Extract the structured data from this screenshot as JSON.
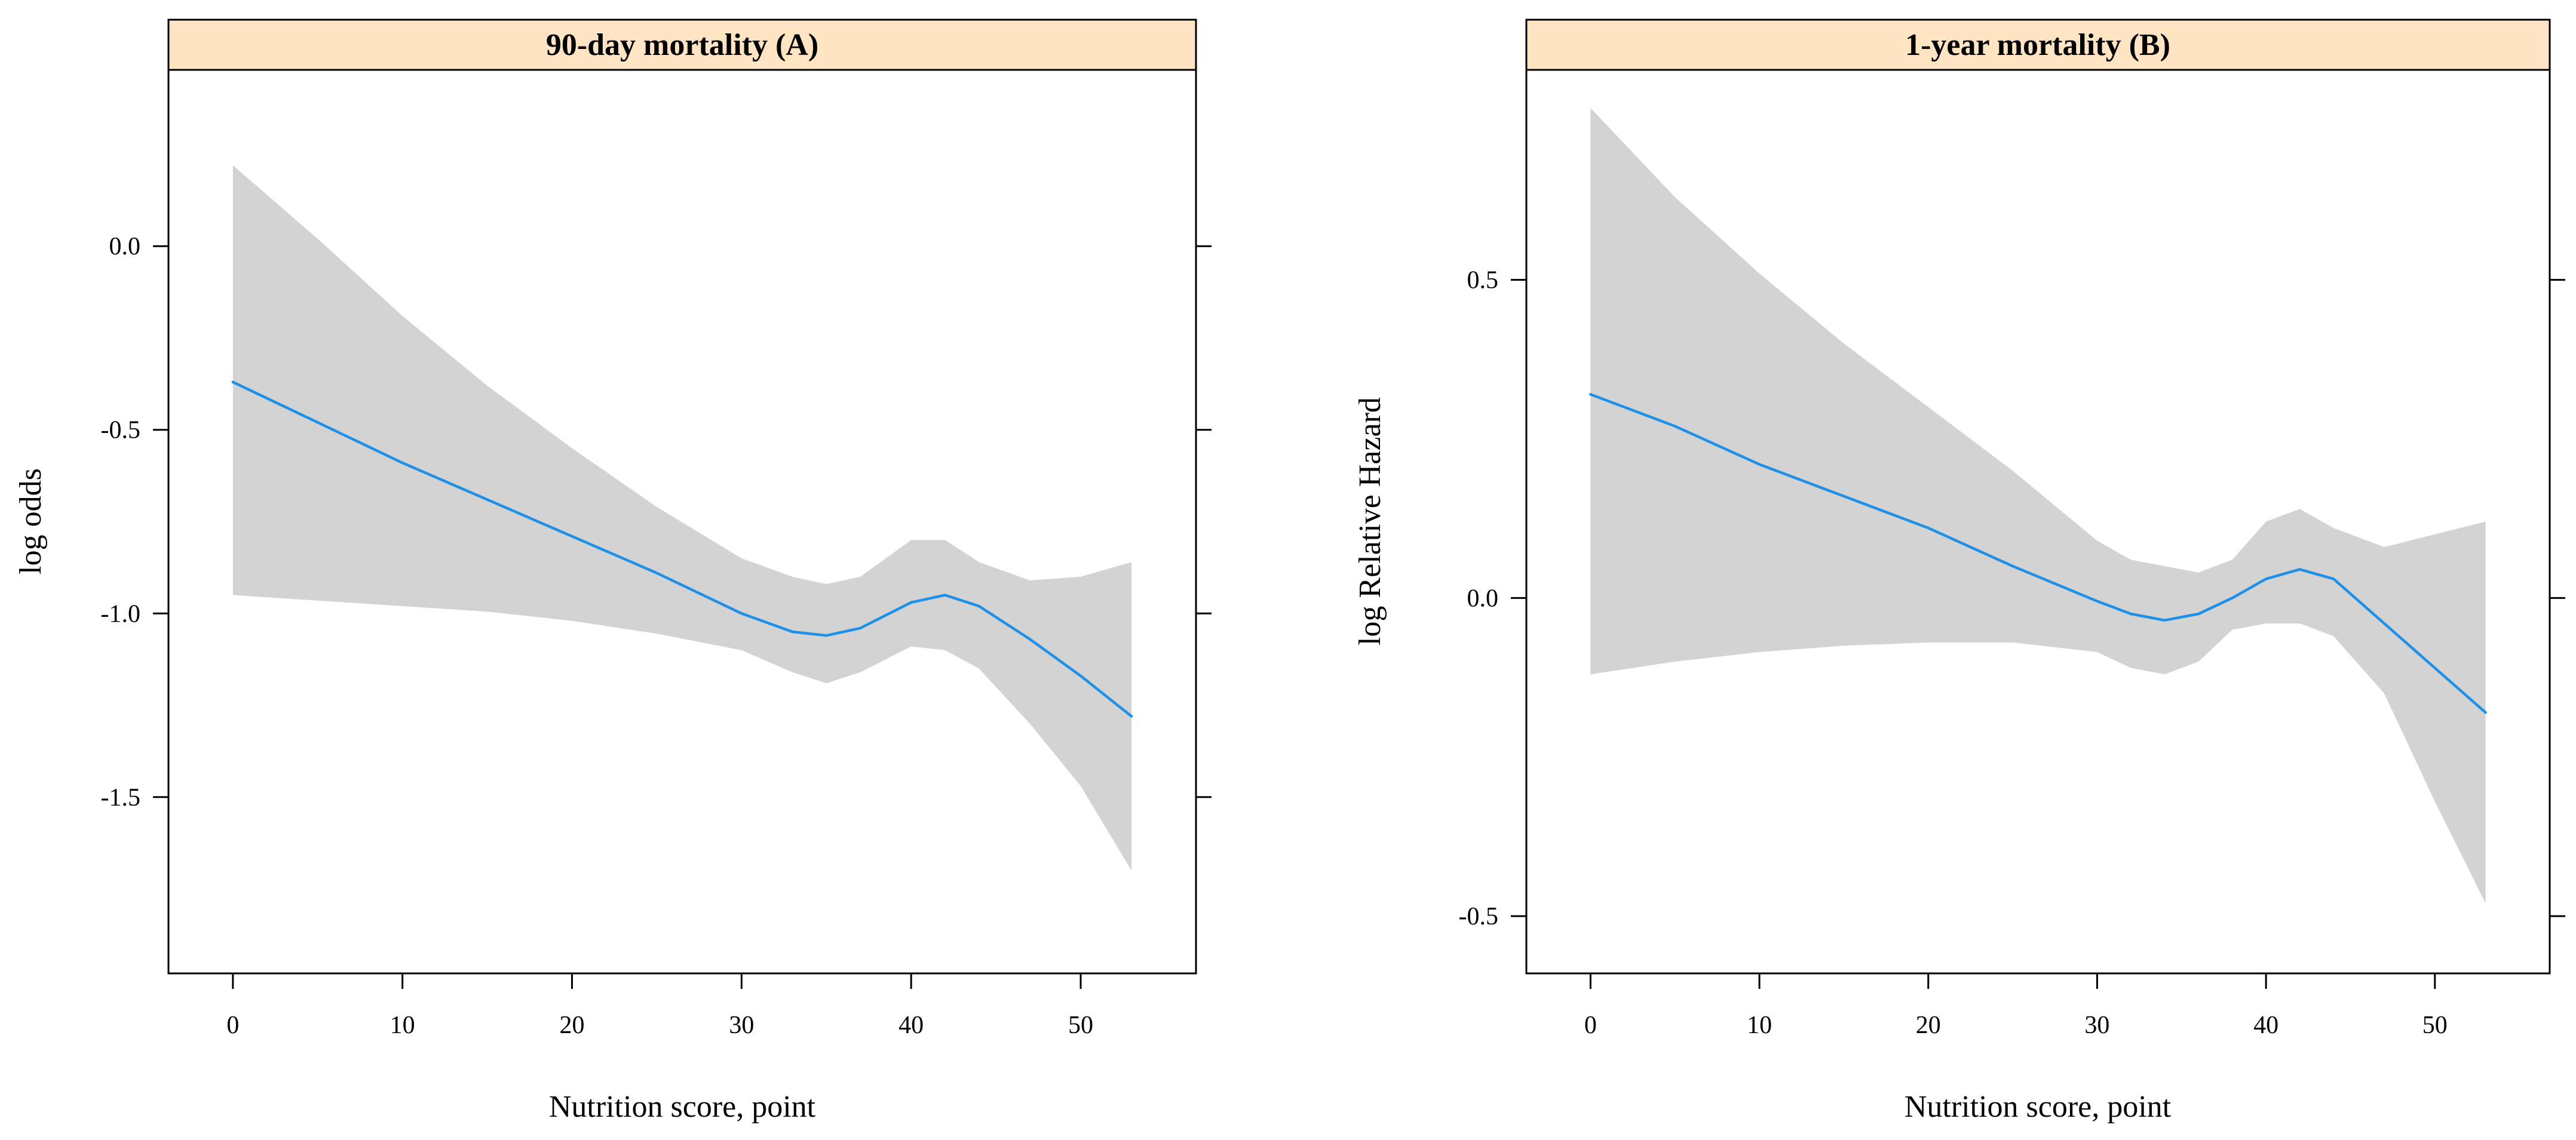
{
  "chart_data": [
    {
      "type": "line",
      "title": "90-day mortality (A)",
      "xlabel": "Nutrition score, point",
      "ylabel": "log odds",
      "xlim": [
        -3.8,
        56.8
      ],
      "ylim": [
        -1.98,
        0.48
      ],
      "x_ticks": [
        0,
        10,
        20,
        30,
        40,
        50
      ],
      "x_tick_labels": [
        "0",
        "10",
        "20",
        "30",
        "40",
        "50"
      ],
      "y_ticks": [
        0.0,
        -0.5,
        -1.0,
        -1.5
      ],
      "y_tick_labels": [
        "0.0",
        "-0.5",
        "-1.0",
        "-1.5"
      ],
      "grid": false,
      "colors": {
        "line": "#1e90e8",
        "band": "#d3d3d3",
        "strip": "#ffe4c4"
      },
      "series": [
        {
          "x": [
            0,
            5,
            10,
            15,
            20,
            25,
            30,
            33,
            35,
            37,
            40,
            42,
            44,
            47,
            50,
            53
          ],
          "y": [
            -0.37,
            -0.48,
            -0.59,
            -0.69,
            -0.79,
            -0.89,
            -1.0,
            -1.05,
            -1.06,
            -1.04,
            -0.97,
            -0.95,
            -0.98,
            -1.07,
            -1.17,
            -1.28
          ],
          "lower": [
            -0.95,
            -0.965,
            -0.98,
            -0.995,
            -1.02,
            -1.055,
            -1.1,
            -1.16,
            -1.19,
            -1.16,
            -1.09,
            -1.1,
            -1.15,
            -1.3,
            -1.47,
            -1.7
          ],
          "upper": [
            0.22,
            0.02,
            -0.19,
            -0.38,
            -0.55,
            -0.71,
            -0.85,
            -0.9,
            -0.92,
            -0.9,
            -0.8,
            -0.8,
            -0.86,
            -0.91,
            -0.9,
            -0.86
          ]
        }
      ]
    },
    {
      "type": "line",
      "title": "1-year mortality (B)",
      "xlabel": "Nutrition score, point",
      "ylabel": "log Relative Hazard",
      "xlim": [
        -3.8,
        56.8
      ],
      "ylim": [
        -0.59,
        0.83
      ],
      "x_ticks": [
        0,
        10,
        20,
        30,
        40,
        50
      ],
      "x_tick_labels": [
        "0",
        "10",
        "20",
        "30",
        "40",
        "50"
      ],
      "y_ticks": [
        0.5,
        0.0,
        -0.5
      ],
      "y_tick_labels": [
        "0.5",
        "0.0",
        "-0.5"
      ],
      "grid": false,
      "colors": {
        "line": "#1e90e8",
        "band": "#d3d3d3",
        "strip": "#ffe4c4"
      },
      "series": [
        {
          "x": [
            0,
            5,
            10,
            15,
            20,
            25,
            30,
            32,
            34,
            36,
            38,
            40,
            42,
            44,
            47,
            50,
            53
          ],
          "y": [
            0.32,
            0.27,
            0.21,
            0.16,
            0.11,
            0.05,
            -0.005,
            -0.025,
            -0.035,
            -0.025,
            0.0,
            0.03,
            0.045,
            0.03,
            -0.04,
            -0.11,
            -0.18
          ],
          "lower": [
            -0.12,
            -0.1,
            -0.085,
            -0.075,
            -0.07,
            -0.07,
            -0.085,
            -0.11,
            -0.12,
            -0.1,
            -0.05,
            -0.04,
            -0.04,
            -0.06,
            -0.15,
            -0.32,
            -0.48
          ],
          "upper": [
            0.77,
            0.63,
            0.51,
            0.4,
            0.3,
            0.2,
            0.09,
            0.06,
            0.05,
            0.04,
            0.06,
            0.12,
            0.14,
            0.11,
            0.08,
            0.1,
            0.12
          ]
        }
      ]
    }
  ]
}
